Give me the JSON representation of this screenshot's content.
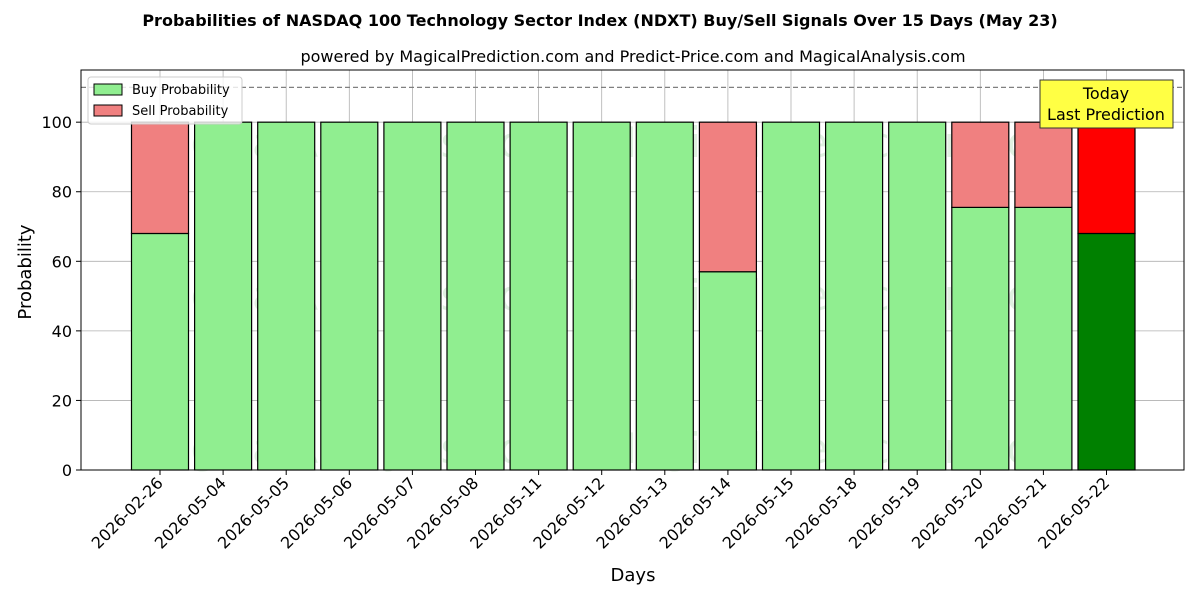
{
  "chart_data": {
    "type": "bar",
    "stacked": true,
    "title": "Probabilities of NASDAQ 100 Technology Sector Index (NDXT) Buy/Sell Signals Over 15 Days (May 23)",
    "subtitle": "powered by MagicalPrediction.com and Predict-Price.com and MagicalAnalysis.com",
    "xlabel": "Days",
    "ylabel": "Probability",
    "ylim": [
      0,
      115
    ],
    "yticks": [
      0,
      20,
      40,
      60,
      80,
      100
    ],
    "reference_line": 110,
    "grid": true,
    "legend_position": "top-left",
    "categories": [
      "2026-02-26",
      "2026-05-04",
      "2026-05-05",
      "2026-05-06",
      "2026-05-07",
      "2026-05-08",
      "2026-05-11",
      "2026-05-12",
      "2026-05-13",
      "2026-05-14",
      "2026-05-15",
      "2026-05-18",
      "2026-05-19",
      "2026-05-20",
      "2026-05-21",
      "2026-05-22"
    ],
    "series": [
      {
        "name": "Buy Probability",
        "color": "#90ee90",
        "highlight_color": "#008000",
        "values": [
          68,
          100,
          100,
          100,
          100,
          100,
          100,
          100,
          100,
          57,
          100,
          100,
          100,
          75.5,
          75.5,
          68
        ]
      },
      {
        "name": "Sell Probability",
        "color": "#f08080",
        "highlight_color": "#ff0000",
        "values": [
          32,
          0,
          0,
          0,
          0,
          0,
          0,
          0,
          0,
          43,
          0,
          0,
          0,
          24.5,
          24.5,
          32
        ]
      }
    ],
    "highlight_index": 15,
    "annotation": {
      "lines": [
        "Today",
        "Last Prediction"
      ],
      "background": "#ffff44"
    },
    "watermarks": [
      "MagicalAnalysis.com",
      "MagicalPrediction.com"
    ]
  }
}
